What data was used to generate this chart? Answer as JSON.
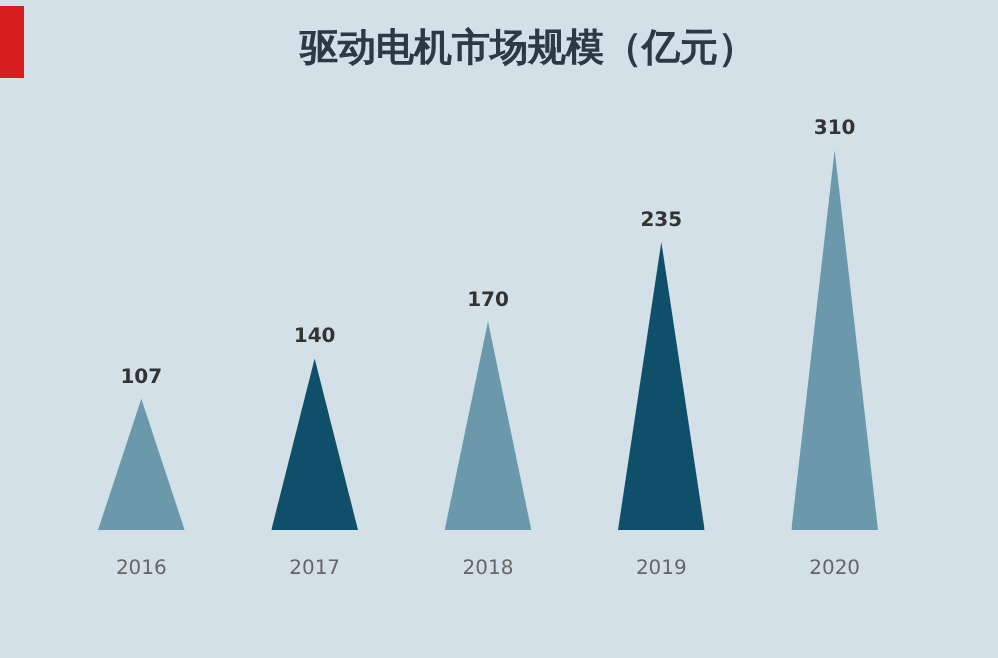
{
  "chart_data": {
    "type": "bar",
    "title": "驱动电机市场规模（亿元）",
    "categories": [
      "2016",
      "2017",
      "2018",
      "2019",
      "2020"
    ],
    "values": [
      107,
      140,
      170,
      235,
      310
    ],
    "colors": [
      "#6b98ab",
      "#0f4f69",
      "#6b98ab",
      "#0f4f69",
      "#6b98ab"
    ],
    "data_labels": true
  }
}
